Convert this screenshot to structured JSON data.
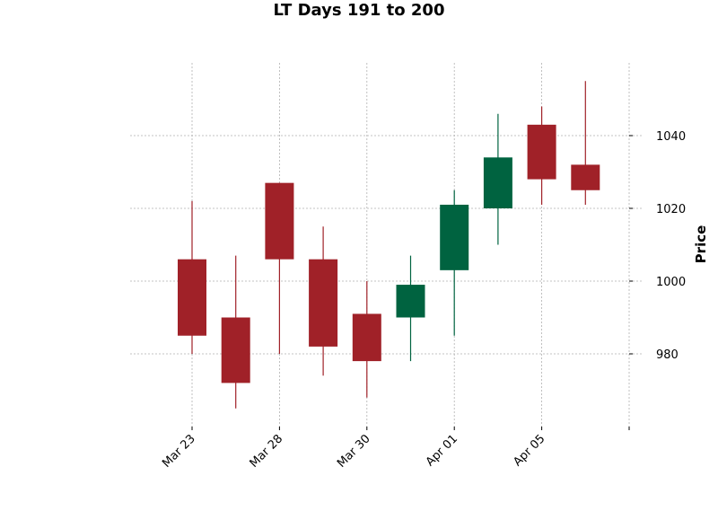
{
  "chart_data": {
    "type": "candlestick",
    "title": "LT Days 191 to 200",
    "xlabel": "",
    "ylabel": "Price",
    "ylim": [
      960,
      1060
    ],
    "y_ticks": [
      980,
      1000,
      1020,
      1040
    ],
    "x_tick_labels": [
      "Mar 23",
      "Mar 28",
      "Mar 30",
      "Apr 01",
      "Apr 05",
      ""
    ],
    "grid": true,
    "colors": {
      "up": "#006340",
      "down": "#a02128",
      "grid": "#b0b0b0"
    },
    "candles": [
      {
        "open": 1006,
        "high": 1022,
        "low": 980,
        "close": 985
      },
      {
        "open": 990,
        "high": 1007,
        "low": 965,
        "close": 972
      },
      {
        "open": 1027,
        "high": 1027,
        "low": 980,
        "close": 1006
      },
      {
        "open": 1006,
        "high": 1015,
        "low": 974,
        "close": 982
      },
      {
        "open": 991,
        "high": 1000,
        "low": 968,
        "close": 978
      },
      {
        "open": 990,
        "high": 1007,
        "low": 978,
        "close": 999
      },
      {
        "open": 1003,
        "high": 1025,
        "low": 985,
        "close": 1021
      },
      {
        "open": 1020,
        "high": 1046,
        "low": 1010,
        "close": 1034
      },
      {
        "open": 1043,
        "high": 1048,
        "low": 1021,
        "close": 1028
      },
      {
        "open": 1032,
        "high": 1055,
        "low": 1021,
        "close": 1025
      }
    ]
  }
}
